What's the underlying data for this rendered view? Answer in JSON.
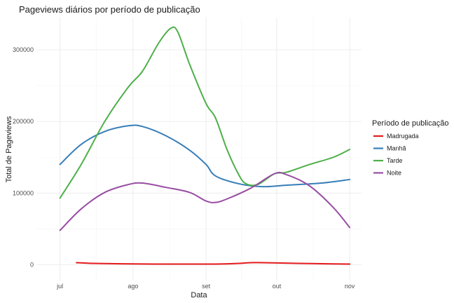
{
  "chart_data": {
    "type": "line",
    "title": "Pageviews diários por período de publicação",
    "xlabel": "Data",
    "ylabel": "Total de Pageviews",
    "x_ticks": [
      {
        "label": "jul",
        "date": "2019-07-01"
      },
      {
        "label": "ago",
        "date": "2019-08-01"
      },
      {
        "label": "set",
        "date": "2019-09-01"
      },
      {
        "label": "out",
        "date": "2019-10-01"
      },
      {
        "label": "nov",
        "date": "2019-11-01"
      }
    ],
    "xlim": [
      "2019-06-21",
      "2019-11-06"
    ],
    "y_ticks": [
      0,
      100000,
      200000,
      300000
    ],
    "y_tick_labels": [
      "0",
      "100000",
      "200000",
      "300000"
    ],
    "ylim": [
      -22000,
      345000
    ],
    "grid": true,
    "legend": {
      "title": "Período de publicação",
      "position": "right"
    },
    "series": [
      {
        "name": "Madrugada",
        "color": "#e41a1c",
        "points": [
          [
            "2019-07-08",
            3000
          ],
          [
            "2019-07-15",
            2000
          ],
          [
            "2019-08-01",
            1200
          ],
          [
            "2019-08-20",
            1000
          ],
          [
            "2019-09-05",
            1000
          ],
          [
            "2019-09-15",
            2000
          ],
          [
            "2019-09-20",
            3000
          ],
          [
            "2019-09-25",
            3000
          ],
          [
            "2019-10-10",
            2000
          ],
          [
            "2019-10-20",
            1500
          ],
          [
            "2019-11-01",
            1000
          ]
        ]
      },
      {
        "name": "Manhã",
        "color": "#377eb8",
        "points": [
          [
            "2019-07-01",
            140000
          ],
          [
            "2019-07-10",
            168000
          ],
          [
            "2019-07-20",
            186000
          ],
          [
            "2019-07-30",
            194000
          ],
          [
            "2019-08-05",
            193000
          ],
          [
            "2019-08-15",
            180000
          ],
          [
            "2019-08-25",
            160000
          ],
          [
            "2019-09-01",
            140000
          ],
          [
            "2019-09-05",
            124000
          ],
          [
            "2019-09-15",
            113000
          ],
          [
            "2019-09-25",
            109000
          ],
          [
            "2019-10-05",
            111000
          ],
          [
            "2019-10-20",
            114000
          ],
          [
            "2019-11-01",
            119000
          ]
        ]
      },
      {
        "name": "Tarde",
        "color": "#4daf4a",
        "points": [
          [
            "2019-07-01",
            93000
          ],
          [
            "2019-07-10",
            140000
          ],
          [
            "2019-07-20",
            200000
          ],
          [
            "2019-07-30",
            248000
          ],
          [
            "2019-08-05",
            270000
          ],
          [
            "2019-08-12",
            310000
          ],
          [
            "2019-08-17",
            330000
          ],
          [
            "2019-08-20",
            325000
          ],
          [
            "2019-08-25",
            280000
          ],
          [
            "2019-09-01",
            225000
          ],
          [
            "2019-09-05",
            205000
          ],
          [
            "2019-09-10",
            160000
          ],
          [
            "2019-09-15",
            125000
          ],
          [
            "2019-09-18",
            113000
          ],
          [
            "2019-09-23",
            112000
          ],
          [
            "2019-09-30",
            127000
          ],
          [
            "2019-10-05",
            129000
          ],
          [
            "2019-10-15",
            140000
          ],
          [
            "2019-10-25",
            150000
          ],
          [
            "2019-11-01",
            161000
          ]
        ]
      },
      {
        "name": "Noite",
        "color": "#984ea3",
        "points": [
          [
            "2019-07-01",
            48000
          ],
          [
            "2019-07-10",
            78000
          ],
          [
            "2019-07-20",
            101000
          ],
          [
            "2019-07-30",
            112000
          ],
          [
            "2019-08-05",
            114000
          ],
          [
            "2019-08-15",
            108000
          ],
          [
            "2019-08-25",
            101000
          ],
          [
            "2019-09-01",
            89000
          ],
          [
            "2019-09-05",
            87000
          ],
          [
            "2019-09-10",
            92000
          ],
          [
            "2019-09-20",
            107000
          ],
          [
            "2019-09-30",
            127000
          ],
          [
            "2019-10-05",
            126000
          ],
          [
            "2019-10-15",
            110000
          ],
          [
            "2019-10-25",
            80000
          ],
          [
            "2019-11-01",
            52000
          ]
        ]
      }
    ]
  }
}
